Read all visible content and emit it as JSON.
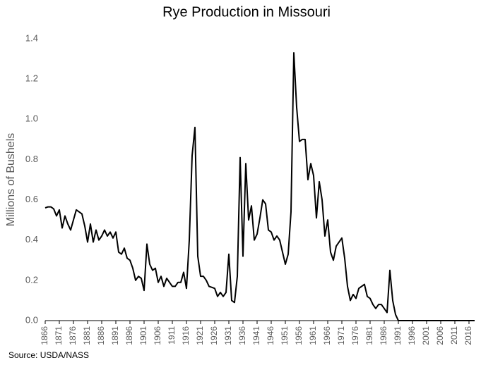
{
  "chart_data": {
    "type": "line",
    "title": "Rye Production in Missouri",
    "y_label": "Millions of Bushels",
    "source": "Source: USDA/NASS",
    "x": [
      1866,
      1867,
      1868,
      1869,
      1870,
      1871,
      1872,
      1873,
      1874,
      1875,
      1876,
      1877,
      1878,
      1879,
      1880,
      1881,
      1882,
      1883,
      1884,
      1885,
      1886,
      1887,
      1888,
      1889,
      1890,
      1891,
      1892,
      1893,
      1894,
      1895,
      1896,
      1897,
      1898,
      1899,
      1900,
      1901,
      1902,
      1903,
      1904,
      1905,
      1906,
      1907,
      1908,
      1909,
      1910,
      1911,
      1912,
      1913,
      1914,
      1915,
      1916,
      1917,
      1918,
      1919,
      1920,
      1921,
      1922,
      1923,
      1924,
      1925,
      1926,
      1927,
      1928,
      1929,
      1930,
      1931,
      1932,
      1933,
      1934,
      1935,
      1936,
      1937,
      1938,
      1939,
      1940,
      1941,
      1942,
      1943,
      1944,
      1945,
      1946,
      1947,
      1948,
      1949,
      1950,
      1951,
      1952,
      1953,
      1954,
      1955,
      1956,
      1957,
      1958,
      1959,
      1960,
      1961,
      1962,
      1963,
      1964,
      1965,
      1966,
      1967,
      1968,
      1969,
      1970,
      1971,
      1972,
      1973,
      1974,
      1975,
      1976,
      1977,
      1978,
      1979,
      1980,
      1981,
      1982,
      1983,
      1984,
      1985,
      1986,
      1987,
      1988,
      1989,
      1990,
      1991,
      1992,
      1993,
      1994,
      1995,
      1996,
      1997,
      1998,
      1999,
      2000,
      2001,
      2002,
      2003,
      2004,
      2005,
      2006,
      2007,
      2008,
      2009,
      2010,
      2011,
      2012,
      2013,
      2014,
      2015,
      2016,
      2017,
      2018
    ],
    "series": [
      {
        "name": "Rye Production",
        "color": "#000000",
        "values": [
          0.56,
          0.565,
          0.565,
          0.555,
          0.52,
          0.55,
          0.46,
          0.52,
          0.48,
          0.45,
          0.5,
          0.55,
          0.54,
          0.53,
          0.47,
          0.39,
          0.48,
          0.39,
          0.45,
          0.4,
          0.42,
          0.45,
          0.42,
          0.44,
          0.41,
          0.44,
          0.34,
          0.33,
          0.36,
          0.31,
          0.3,
          0.26,
          0.2,
          0.22,
          0.21,
          0.15,
          0.38,
          0.28,
          0.25,
          0.26,
          0.19,
          0.22,
          0.17,
          0.21,
          0.19,
          0.17,
          0.17,
          0.19,
          0.19,
          0.24,
          0.16,
          0.4,
          0.82,
          0.96,
          0.32,
          0.22,
          0.22,
          0.2,
          0.17,
          0.165,
          0.16,
          0.12,
          0.14,
          0.12,
          0.14,
          0.33,
          0.1,
          0.09,
          0.22,
          0.81,
          0.32,
          0.78,
          0.5,
          0.57,
          0.4,
          0.43,
          0.51,
          0.6,
          0.58,
          0.45,
          0.44,
          0.4,
          0.42,
          0.4,
          0.34,
          0.28,
          0.33,
          0.54,
          1.33,
          1.06,
          0.89,
          0.9,
          0.9,
          0.7,
          0.78,
          0.72,
          0.51,
          0.69,
          0.6,
          0.42,
          0.5,
          0.34,
          0.3,
          0.37,
          0.39,
          0.41,
          0.31,
          0.17,
          0.1,
          0.13,
          0.11,
          0.16,
          0.17,
          0.18,
          0.12,
          0.11,
          0.08,
          0.06,
          0.08,
          0.08,
          0.06,
          0.04,
          0.25,
          0.1,
          0.03,
          0,
          0,
          0,
          0,
          0,
          0,
          0,
          0,
          0,
          0,
          0,
          0,
          0,
          0,
          0,
          0,
          0,
          0,
          0,
          0,
          0,
          0,
          0,
          0,
          0,
          0,
          0,
          0
        ]
      }
    ],
    "xlim": [
      1866,
      2018
    ],
    "xticks": [
      1866,
      1871,
      1876,
      1881,
      1886,
      1891,
      1896,
      1901,
      1906,
      1911,
      1916,
      1921,
      1926,
      1931,
      1936,
      1941,
      1946,
      1951,
      1956,
      1961,
      1966,
      1971,
      1976,
      1981,
      1986,
      1991,
      1996,
      2001,
      2006,
      2011,
      2016
    ],
    "ylim": [
      0,
      1.4
    ],
    "yticks": [
      {
        "value": 0,
        "label": "0.0"
      },
      0.2,
      0.4,
      0.6,
      0.8,
      {
        "value": 1,
        "label": "1.0"
      },
      1.2,
      1.4
    ],
    "grid": false
  }
}
